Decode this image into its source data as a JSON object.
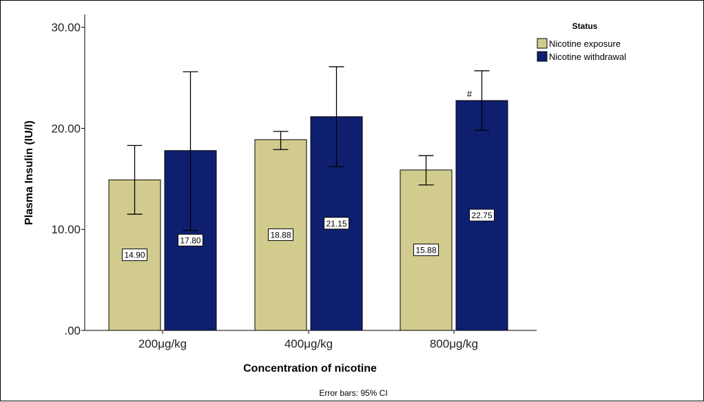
{
  "chart_data": {
    "type": "bar",
    "categories": [
      "200μg/kg",
      "400μg/kg",
      "800μg/kg"
    ],
    "series": [
      {
        "name": "Nicotine exposure",
        "color": "#d1cc8e",
        "values": [
          14.9,
          18.88,
          15.88
        ],
        "value_labels": [
          "14.90",
          "18.88",
          "15.88"
        ],
        "ci_low": [
          11.5,
          17.9,
          14.4
        ],
        "ci_high": [
          18.3,
          19.7,
          17.3
        ]
      },
      {
        "name": "Nicotine withdrawal",
        "color": "#0f1f70",
        "values": [
          17.8,
          21.15,
          22.75
        ],
        "value_labels": [
          "17.80",
          "21.15",
          "22.75"
        ],
        "ci_low": [
          9.9,
          16.2,
          19.8
        ],
        "ci_high": [
          25.6,
          26.1,
          25.7
        ]
      }
    ],
    "ylim": [
      0,
      31
    ],
    "yticks": [
      0,
      10,
      20,
      30
    ],
    "ytick_labels": [
      ".00",
      "10.00",
      "20.00",
      "30.00"
    ],
    "xlabel": "Concentration of nicotine",
    "ylabel": "Plasma Insulin (IU/l)",
    "legend": {
      "title": "Status",
      "position": "top-right"
    },
    "annotations": [
      {
        "text": "#",
        "category_index": 2,
        "series_index": 1
      }
    ],
    "grid": false,
    "note": "Error bars: 95% CI"
  }
}
